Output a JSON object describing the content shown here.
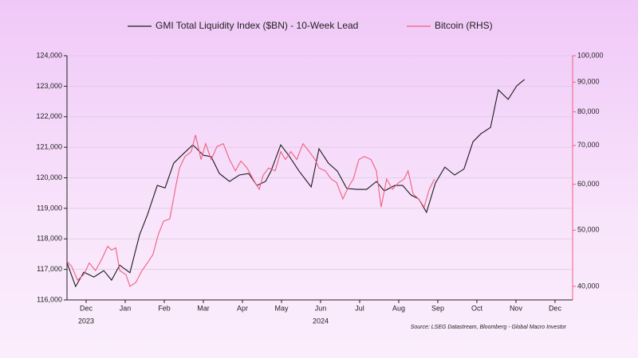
{
  "chart_data": {
    "type": "line",
    "series": [
      {
        "name": "GMI Total Liquidity Index ($BN) - 10-Week Lead",
        "color": "#1a1a1a",
        "axis": "y",
        "x": [
          -0.49,
          -0.27,
          -0.06,
          0.2,
          0.45,
          0.65,
          0.86,
          1.12,
          1.37,
          1.57,
          1.82,
          2.02,
          2.24,
          2.49,
          2.73,
          3.0,
          3.2,
          3.41,
          3.67,
          3.92,
          4.16,
          4.37,
          4.59,
          4.73,
          4.98,
          5.18,
          5.45,
          5.76,
          5.96,
          6.2,
          6.43,
          6.67,
          6.94,
          7.18,
          7.43,
          7.63,
          7.9,
          8.1,
          8.31,
          8.51,
          8.71,
          8.94,
          9.18,
          9.43,
          9.67,
          9.9,
          10.1,
          10.35,
          10.55,
          10.8,
          11.02,
          11.22
        ],
        "values": [
          117220,
          116440,
          116910,
          116750,
          116960,
          116650,
          117140,
          116890,
          118140,
          118790,
          119750,
          119670,
          120480,
          120790,
          121080,
          120740,
          120690,
          120140,
          119880,
          120090,
          120140,
          119750,
          119880,
          120220,
          121080,
          120740,
          120220,
          119700,
          120950,
          120480,
          120220,
          119650,
          119620,
          119620,
          119880,
          119570,
          119750,
          119750,
          119440,
          119310,
          118870,
          119830,
          120350,
          120090,
          120290,
          121180,
          121440,
          121650,
          122880,
          122570,
          123010,
          123220
        ]
      },
      {
        "name": "Bitcoin (RHS)",
        "color": "#f0607f",
        "axis": "y2",
        "x": [
          -0.49,
          -0.37,
          -0.22,
          -0.06,
          0.08,
          0.24,
          0.41,
          0.55,
          0.65,
          0.76,
          0.86,
          1.02,
          1.12,
          1.27,
          1.43,
          1.57,
          1.71,
          1.84,
          1.98,
          2.14,
          2.29,
          2.39,
          2.53,
          2.69,
          2.8,
          2.94,
          3.06,
          3.2,
          3.35,
          3.51,
          3.67,
          3.82,
          3.96,
          4.12,
          4.27,
          4.43,
          4.53,
          4.67,
          4.84,
          4.98,
          5.1,
          5.24,
          5.39,
          5.55,
          5.71,
          5.86,
          5.96,
          6.12,
          6.27,
          6.41,
          6.57,
          6.71,
          6.84,
          6.98,
          7.12,
          7.29,
          7.43,
          7.55,
          7.69,
          7.84,
          8.0,
          8.14,
          8.24,
          8.37,
          8.51,
          8.65,
          8.78,
          8.92
        ],
        "values": [
          44200,
          43300,
          41000,
          41900,
          43900,
          42600,
          44700,
          46900,
          46200,
          46600,
          42600,
          41900,
          40000,
          40600,
          42600,
          43900,
          45400,
          49000,
          51800,
          52300,
          59300,
          64000,
          67000,
          68300,
          73000,
          66200,
          70500,
          66200,
          69700,
          70500,
          66200,
          63300,
          65800,
          64000,
          61300,
          58800,
          62200,
          64000,
          63300,
          68300,
          66200,
          68300,
          66200,
          70500,
          68300,
          66200,
          64000,
          63300,
          61300,
          60400,
          56600,
          59300,
          61300,
          66200,
          67000,
          66200,
          63300,
          54800,
          61300,
          58800,
          60400,
          61300,
          63300,
          57700,
          56600,
          54800,
          58800,
          61300
        ]
      }
    ],
    "xlim": [
      -0.49,
      12.45
    ],
    "xticks": [
      {
        "value": 0,
        "label": "Dec"
      },
      {
        "value": 1,
        "label": "Jan"
      },
      {
        "value": 2,
        "label": "Feb"
      },
      {
        "value": 3,
        "label": "Mar"
      },
      {
        "value": 4,
        "label": "Apr"
      },
      {
        "value": 5,
        "label": "May"
      },
      {
        "value": 6,
        "label": "Jun"
      },
      {
        "value": 7,
        "label": "Jul"
      },
      {
        "value": 8,
        "label": "Aug"
      },
      {
        "value": 9,
        "label": "Sep"
      },
      {
        "value": 10,
        "label": "Oct"
      },
      {
        "value": 11,
        "label": "Nov"
      },
      {
        "value": 12,
        "label": "Dec"
      }
    ],
    "year_labels": [
      {
        "text": "2023",
        "x": 0
      },
      {
        "text": "2024",
        "x": 6
      }
    ],
    "ylim": [
      116000,
      124000
    ],
    "yticks": [
      {
        "value": 116000,
        "label": "116,000"
      },
      {
        "value": 117000,
        "label": "117,000"
      },
      {
        "value": 118000,
        "label": "118,000"
      },
      {
        "value": 119000,
        "label": "119,000"
      },
      {
        "value": 120000,
        "label": "120,000"
      },
      {
        "value": 121000,
        "label": "121,000"
      },
      {
        "value": 122000,
        "label": "122,000"
      },
      {
        "value": 123000,
        "label": "123,000"
      },
      {
        "value": 124000,
        "label": "124,000"
      }
    ],
    "y2lim": [
      37900,
      100000
    ],
    "y2log": true,
    "y2ticks": [
      {
        "value": 40000,
        "label": "40,000"
      },
      {
        "value": 50000,
        "label": "50,000"
      },
      {
        "value": 60000,
        "label": "60,000"
      },
      {
        "value": 70000,
        "label": "70,000"
      },
      {
        "value": 80000,
        "label": "80,000"
      },
      {
        "value": 90000,
        "label": "90,000"
      },
      {
        "value": 100000,
        "label": "100,000"
      }
    ],
    "y2color": "#f0607f",
    "grid": true,
    "source": "Source: LSEG Datastream, Bloomberg - Global Macro Investor"
  }
}
